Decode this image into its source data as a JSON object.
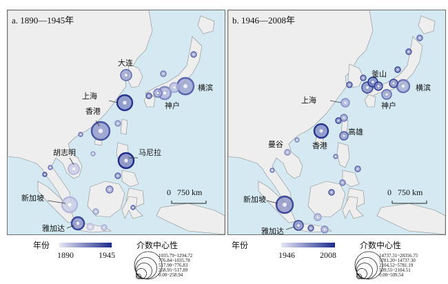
{
  "panels": [
    {
      "id": "a",
      "title": "a. 1890—1945年",
      "scale_zero": "0",
      "scale_label": "750 km",
      "cities": [
        "大连",
        "上海",
        "香港",
        "胡志明",
        "马尼拉",
        "新加坡",
        "雅加达",
        "神户",
        "横滨"
      ],
      "legend": {
        "year_title": "年份",
        "year_min": "1890",
        "year_max": "1945",
        "bc_title": "介数中心性",
        "bc_classes": [
          "1035.79~1294.72",
          "776.84~1035.78",
          "517.90~776.83",
          "258.95~517.89",
          "0.00~258.94"
        ]
      }
    },
    {
      "id": "b",
      "title": "b. 1946—2008年",
      "scale_zero": "0",
      "scale_label": "750 km",
      "cities": [
        "釜山",
        "上海",
        "横滨",
        "神户",
        "高雄",
        "香港",
        "曼谷",
        "新加坡",
        "雅加达"
      ],
      "legend": {
        "year_title": "年份",
        "year_min": "1946",
        "year_max": "2008",
        "bc_title": "介数中心性",
        "bc_classes": [
          "14737.31~28356.75",
          "5781.20~14737.30",
          "2104.52~5781.19",
          "509.55~2104.51",
          "0.00~509.54"
        ]
      }
    }
  ],
  "colors": {
    "sea": "#d4e9f2",
    "land": "#eeeeee",
    "coast": "#8a8a8a",
    "node_dark": "#1c2a8c",
    "node_light": "#c9c9e8"
  }
}
